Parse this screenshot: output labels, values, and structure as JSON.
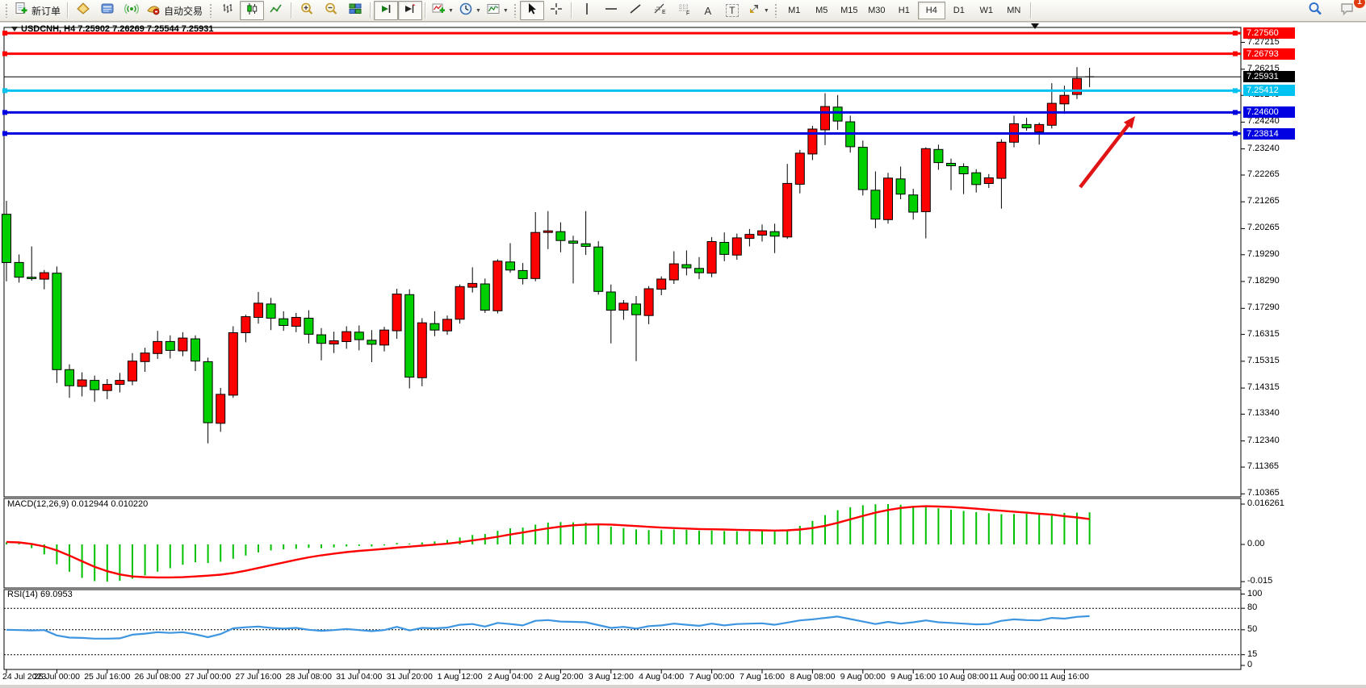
{
  "toolbar": {
    "new_order_label": "新订单",
    "autotrading_label": "自动交易",
    "timeframes": [
      "M1",
      "M5",
      "M15",
      "M30",
      "H1",
      "H4",
      "D1",
      "W1",
      "MN"
    ],
    "active_timeframe": "H4",
    "notification_count": "1",
    "icons": {
      "new_order": "new-order-icon",
      "market_watch": "market-watch-icon",
      "data_window": "data-window-icon",
      "signals": "signals-icon",
      "autotrading": "autotrading-icon",
      "bars": "bar-chart-icon",
      "candles": "candlestick-icon",
      "line": "line-chart-icon",
      "zoom_in": "zoom-in-icon",
      "zoom_out": "zoom-out-icon",
      "tile": "tile-windows-icon",
      "autoscroll": "auto-scroll-icon",
      "shift": "chart-shift-icon",
      "indicators": "indicators-icon",
      "periods": "periods-clock-icon",
      "templates": "templates-icon",
      "cursor": "cursor-icon",
      "crosshair": "crosshair-icon",
      "text_tool_glyph": "A",
      "label_tool_glyph": "T",
      "search": "search-icon",
      "chat": "chat-icon"
    }
  },
  "chart": {
    "title": "USDCNH, H4  7.25902 7.26269 7.25544 7.25931",
    "macd_label": "MACD(12,26,9) 0.012944 0.010220",
    "rsi_label": "RSI(14) 69.0953"
  },
  "price_axis": {
    "badges": [
      {
        "text": "7.27560",
        "bg": "#ff0000"
      },
      {
        "text": "7.26793",
        "bg": "#ff0000"
      },
      {
        "text": "7.25931",
        "bg": "#000000"
      },
      {
        "text": "7.25412",
        "bg": "#00c2f0"
      },
      {
        "text": "7.24600",
        "bg": "#0000e0"
      },
      {
        "text": "7.23814",
        "bg": "#0000e0"
      }
    ],
    "ticks": [
      "7.27215",
      "7.26215",
      "7.25240",
      "7.24240",
      "7.23240",
      "7.22265",
      "7.21265",
      "7.20265",
      "7.19290",
      "7.18290",
      "7.17290",
      "7.16315",
      "7.15315",
      "7.14315",
      "7.13340",
      "7.12340",
      "7.11365",
      "7.10365"
    ]
  },
  "macd_axis": {
    "ticks": [
      {
        "text": "0.016261",
        "v": 0.016261
      },
      {
        "text": "0.00",
        "v": 0
      },
      {
        "text": "-0.015",
        "v": -0.015
      }
    ]
  },
  "rsi_axis": {
    "ticks": [
      {
        "text": "100",
        "v": 100
      },
      {
        "text": "80",
        "v": 80
      },
      {
        "text": "50",
        "v": 50
      },
      {
        "text": "15",
        "v": 15
      },
      {
        "text": "0",
        "v": 0
      }
    ],
    "dashed_levels": [
      80,
      50,
      15
    ]
  },
  "chart_data": {
    "type": "candlestick",
    "symbol_timeframe": "USDCNH, H4",
    "title_ohlc": {
      "open": 7.25902,
      "high": 7.26269,
      "low": 7.25544,
      "close": 7.25931
    },
    "note": "Chinese color convention: red = bullish, green = bearish",
    "bull_color": "#ff0000",
    "bear_color": "#00d000",
    "current_price": 7.25931,
    "hlines": [
      {
        "price": 7.2756,
        "color": "#ff0000"
      },
      {
        "price": 7.26793,
        "color": "#ff0000"
      },
      {
        "price": 7.25412,
        "color": "#00c2f0"
      },
      {
        "price": 7.246,
        "color": "#0000e0"
      },
      {
        "price": 7.23814,
        "color": "#0000e0"
      }
    ],
    "x_labels": [
      "24 Jul 2023",
      "25 Jul 00:00",
      "25 Jul 16:00",
      "26 Jul 08:00",
      "27 Jul 00:00",
      "27 Jul 16:00",
      "28 Jul 08:00",
      "31 Jul 04:00",
      "31 Jul 20:00",
      "1 Aug 12:00",
      "2 Aug 04:00",
      "2 Aug 20:00",
      "3 Aug 12:00",
      "4 Aug 04:00",
      "7 Aug 00:00",
      "7 Aug 16:00",
      "8 Aug 08:00",
      "9 Aug 00:00",
      "9 Aug 16:00",
      "10 Aug 08:00",
      "11 Aug 00:00",
      "11 Aug 16:00"
    ],
    "bars_per_label": 4,
    "candles": [
      [
        7.208,
        7.213,
        7.183,
        7.19
      ],
      [
        7.19,
        7.193,
        7.1825,
        7.1845
      ],
      [
        7.1845,
        7.196,
        7.1832,
        7.184
      ],
      [
        7.1838,
        7.1872,
        7.18,
        7.1862
      ],
      [
        7.186,
        7.1885,
        7.145,
        7.15
      ],
      [
        7.15,
        7.152,
        7.1395,
        7.144
      ],
      [
        7.1438,
        7.149,
        7.14,
        7.1462
      ],
      [
        7.146,
        7.1478,
        7.138,
        7.1425
      ],
      [
        7.1422,
        7.1465,
        7.139,
        7.1445
      ],
      [
        7.1445,
        7.1488,
        7.1415,
        7.146
      ],
      [
        7.1458,
        7.1562,
        7.1442,
        7.1532
      ],
      [
        7.153,
        7.1582,
        7.1492,
        7.1562
      ],
      [
        7.156,
        7.1645,
        7.154,
        7.1605
      ],
      [
        7.1605,
        7.1628,
        7.1542,
        7.1572
      ],
      [
        7.157,
        7.164,
        7.155,
        7.1618
      ],
      [
        7.1615,
        7.1628,
        7.1495,
        7.1532
      ],
      [
        7.153,
        7.1545,
        7.1225,
        7.1302
      ],
      [
        7.13,
        7.1432,
        7.1268,
        7.1408
      ],
      [
        7.1405,
        7.1662,
        7.1395,
        7.1638
      ],
      [
        7.1638,
        7.1705,
        7.1602,
        7.1698
      ],
      [
        7.1695,
        7.179,
        7.1672,
        7.1748
      ],
      [
        7.1745,
        7.1768,
        7.1648,
        7.1692
      ],
      [
        7.169,
        7.1718,
        7.1645,
        7.1665
      ],
      [
        7.1662,
        7.1712,
        7.164,
        7.1695
      ],
      [
        7.1692,
        7.1722,
        7.1598,
        7.1632
      ],
      [
        7.163,
        7.1655,
        7.1535,
        7.1598
      ],
      [
        7.1596,
        7.1642,
        7.1562,
        7.1608
      ],
      [
        7.1605,
        7.1662,
        7.1578,
        7.1642
      ],
      [
        7.164,
        7.1665,
        7.1572,
        7.1612
      ],
      [
        7.161,
        7.1648,
        7.1528,
        7.1595
      ],
      [
        7.1592,
        7.166,
        7.1568,
        7.1648
      ],
      [
        7.1645,
        7.1802,
        7.1615,
        7.1782
      ],
      [
        7.178,
        7.18,
        7.143,
        7.1472
      ],
      [
        7.147,
        7.1692,
        7.1438,
        7.1675
      ],
      [
        7.1672,
        7.1718,
        7.1625,
        7.1648
      ],
      [
        7.1645,
        7.1702,
        7.163,
        7.1688
      ],
      [
        7.1688,
        7.1818,
        7.1672,
        7.181
      ],
      [
        7.1808,
        7.1882,
        7.1788,
        7.1822
      ],
      [
        7.182,
        7.184,
        7.1712,
        7.1722
      ],
      [
        7.172,
        7.1912,
        7.171,
        7.1905
      ],
      [
        7.1902,
        7.1972,
        7.1862,
        7.1872
      ],
      [
        7.187,
        7.1898,
        7.1818,
        7.184
      ],
      [
        7.184,
        7.2088,
        7.183,
        7.2012
      ],
      [
        7.2012,
        7.2092,
        7.195,
        7.2018
      ],
      [
        7.2015,
        7.205,
        7.1938,
        7.1982
      ],
      [
        7.198,
        7.2,
        7.1822,
        7.1972
      ],
      [
        7.197,
        7.2092,
        7.1928,
        7.196
      ],
      [
        7.1958,
        7.198,
        7.178,
        7.1792
      ],
      [
        7.179,
        7.1818,
        7.1598,
        7.1722
      ],
      [
        7.1722,
        7.176,
        7.1686,
        7.1748
      ],
      [
        7.1745,
        7.1775,
        7.1532,
        7.1705
      ],
      [
        7.1702,
        7.1812,
        7.167,
        7.1802
      ],
      [
        7.18,
        7.1848,
        7.1778,
        7.1838
      ],
      [
        7.1835,
        7.1942,
        7.182,
        7.1895
      ],
      [
        7.1892,
        7.1945,
        7.1852,
        7.188
      ],
      [
        7.1878,
        7.192,
        7.1838,
        7.1862
      ],
      [
        7.186,
        7.1995,
        7.1845,
        7.1978
      ],
      [
        7.1975,
        7.2012,
        7.1905,
        7.193
      ],
      [
        7.1928,
        7.2008,
        7.191,
        7.1992
      ],
      [
        7.199,
        7.2025,
        7.196,
        7.2005
      ],
      [
        7.2002,
        7.2042,
        7.1978,
        7.2018
      ],
      [
        7.2015,
        7.2045,
        7.1935,
        7.1998
      ],
      [
        7.1995,
        7.2268,
        7.1988,
        7.2195
      ],
      [
        7.2192,
        7.232,
        7.2158,
        7.2308
      ],
      [
        7.2305,
        7.241,
        7.2282,
        7.2398
      ],
      [
        7.2395,
        7.2532,
        7.2338,
        7.2482
      ],
      [
        7.248,
        7.2525,
        7.2395,
        7.2428
      ],
      [
        7.2425,
        7.2448,
        7.231,
        7.2332
      ],
      [
        7.233,
        7.2355,
        7.215,
        7.2172
      ],
      [
        7.217,
        7.224,
        7.2028,
        7.2062
      ],
      [
        7.206,
        7.2235,
        7.2045,
        7.2215
      ],
      [
        7.2212,
        7.2258,
        7.2136,
        7.2155
      ],
      [
        7.2152,
        7.2175,
        7.206,
        7.2088
      ],
      [
        7.209,
        7.233,
        7.199,
        7.2325
      ],
      [
        7.2322,
        7.234,
        7.2246,
        7.2273
      ],
      [
        7.227,
        7.2288,
        7.217,
        7.2261
      ],
      [
        7.2258,
        7.227,
        7.2155,
        7.2231
      ],
      [
        7.2235,
        7.2248,
        7.2161,
        7.2191
      ],
      [
        7.2195,
        7.223,
        7.2178,
        7.2216
      ],
      [
        7.2214,
        7.236,
        7.2101,
        7.2349
      ],
      [
        7.2349,
        7.2448,
        7.233,
        7.2418
      ],
      [
        7.2415,
        7.244,
        7.2392,
        7.2403
      ],
      [
        7.2388,
        7.2422,
        7.234,
        7.2415
      ],
      [
        7.2412,
        7.2569,
        7.24,
        7.2494
      ],
      [
        7.2492,
        7.256,
        7.2455,
        7.2524
      ],
      [
        7.2527,
        7.2629,
        7.251,
        7.2587
      ],
      [
        7.25902,
        7.26269,
        7.25544,
        7.25931
      ]
    ],
    "macd": {
      "histogram": [
        0.0008,
        0.0004,
        -0.0015,
        -0.004,
        -0.008,
        -0.011,
        -0.0135,
        -0.0148,
        -0.015,
        -0.0147,
        -0.0138,
        -0.0125,
        -0.011,
        -0.0096,
        -0.0082,
        -0.0072,
        -0.0075,
        -0.007,
        -0.0058,
        -0.0045,
        -0.0032,
        -0.0024,
        -0.002,
        -0.0018,
        -0.0014,
        -0.0015,
        -0.0012,
        -0.0008,
        -0.0006,
        -0.0008,
        -0.0004,
        0.0006,
        0.0004,
        0.0008,
        0.0012,
        0.0018,
        0.0028,
        0.0038,
        0.0042,
        0.0055,
        0.0065,
        0.0068,
        0.008,
        0.0088,
        0.009,
        0.0089,
        0.0088,
        0.0082,
        0.0072,
        0.0066,
        0.006,
        0.0058,
        0.0058,
        0.006,
        0.0059,
        0.0056,
        0.0056,
        0.0054,
        0.0053,
        0.0053,
        0.0054,
        0.0052,
        0.006,
        0.0075,
        0.0095,
        0.0118,
        0.0138,
        0.015,
        0.0158,
        0.0162,
        0.016261,
        0.016,
        0.0154,
        0.015,
        0.0146,
        0.014,
        0.0135,
        0.013,
        0.0126,
        0.0122,
        0.0123,
        0.0124,
        0.0124,
        0.0125,
        0.0127,
        0.0128,
        0.012944
      ],
      "signal": [
        0.001,
        0.0008,
        0.0002,
        -0.0008,
        -0.0024,
        -0.0045,
        -0.0068,
        -0.009,
        -0.0108,
        -0.0121,
        -0.0129,
        -0.0132,
        -0.0133,
        -0.0133,
        -0.0132,
        -0.0129,
        -0.0126,
        -0.0122,
        -0.0115,
        -0.0106,
        -0.0095,
        -0.0084,
        -0.0073,
        -0.0062,
        -0.0052,
        -0.0044,
        -0.0037,
        -0.0031,
        -0.0026,
        -0.0022,
        -0.0018,
        -0.0013,
        -0.0009,
        -0.0005,
        -0.0001,
        0.0003,
        0.0009,
        0.0016,
        0.0023,
        0.0031,
        0.004,
        0.0048,
        0.0057,
        0.0065,
        0.0072,
        0.0077,
        0.008,
        0.0081,
        0.008,
        0.0077,
        0.0074,
        0.0071,
        0.0068,
        0.0066,
        0.0064,
        0.0062,
        0.0061,
        0.006,
        0.0059,
        0.0058,
        0.0057,
        0.0056,
        0.0057,
        0.006,
        0.0066,
        0.0075,
        0.0087,
        0.0101,
        0.0115,
        0.0128,
        0.0139,
        0.0147,
        0.0152,
        0.0154,
        0.0153,
        0.0151,
        0.0148,
        0.0144,
        0.014,
        0.0136,
        0.0132,
        0.0128,
        0.0124,
        0.012,
        0.0114,
        0.0109,
        0.01022
      ],
      "last_main": 0.012944,
      "last_signal": 0.01022,
      "histogram_color": "#00c000",
      "signal_color": "#ff0000"
    },
    "rsi": {
      "values": [
        50,
        49.5,
        49,
        49.5,
        42,
        39,
        38.5,
        37.5,
        37.5,
        38,
        43,
        44.5,
        46.5,
        45.5,
        46.5,
        43.5,
        39.5,
        44,
        52,
        53.5,
        54.5,
        52.5,
        51.5,
        52.5,
        50,
        48.5,
        49.5,
        51,
        49.5,
        48,
        49.5,
        54,
        49,
        52.5,
        52,
        53,
        57,
        58,
        54.5,
        59.5,
        58,
        56,
        62.5,
        63.5,
        61.5,
        61,
        60.5,
        56.5,
        52.5,
        54,
        51.5,
        55,
        56,
        58.5,
        57,
        55.5,
        58.5,
        56,
        58,
        58.5,
        59,
        57,
        60,
        63,
        64.5,
        66.5,
        68.5,
        65,
        61.5,
        58,
        61,
        58.5,
        60.5,
        63,
        60.5,
        59.5,
        58.5,
        57.5,
        58,
        62.5,
        64.5,
        63.5,
        63,
        66.5,
        65.5,
        68,
        69.0953
      ],
      "last": 69.0953,
      "line_color": "#3e96e0"
    },
    "annotation_arrow": {
      "from": [
        1338,
        232
      ],
      "to": [
        1406,
        144
      ],
      "color": "#e01414"
    }
  }
}
